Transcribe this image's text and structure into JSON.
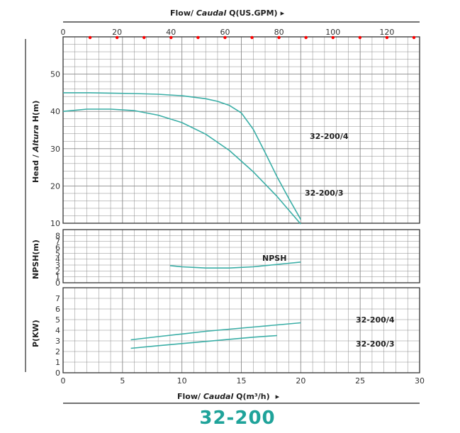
{
  "chart_data": [
    {
      "type": "line",
      "name": "head",
      "ylabel_prefix": "Head / ",
      "ylabel_italic": "Altura",
      "ylabel_suffix": " H(m)",
      "ylim": [
        10,
        60
      ],
      "yticks": [
        10,
        20,
        30,
        40,
        50
      ],
      "series": [
        {
          "name": "32-200/4",
          "x": [
            0,
            2,
            4,
            6,
            8,
            10,
            12,
            13,
            14,
            15,
            16,
            17,
            18,
            19,
            20
          ],
          "y": [
            45.0,
            45.0,
            44.9,
            44.8,
            44.6,
            44.2,
            43.4,
            42.7,
            41.6,
            39.6,
            35.2,
            29.0,
            22.5,
            16.6,
            11.0
          ]
        },
        {
          "name": "32-200/3",
          "x": [
            0,
            2,
            4,
            6,
            8,
            10,
            12,
            14,
            16,
            18,
            20
          ],
          "y": [
            40.0,
            40.6,
            40.6,
            40.2,
            39.0,
            37.0,
            33.9,
            29.5,
            23.8,
            17.2,
            9.8
          ]
        }
      ]
    },
    {
      "type": "line",
      "name": "npsh",
      "ylabel": "NPSH(m)",
      "ylim": [
        0,
        9
      ],
      "yticks": [
        0,
        1,
        2,
        3,
        4,
        5,
        6,
        7,
        8
      ],
      "series": [
        {
          "name": "NPSH",
          "x": [
            9,
            10,
            11,
            12,
            13,
            14,
            15,
            16,
            17,
            18,
            19,
            20
          ],
          "y": [
            2.9,
            2.7,
            2.6,
            2.5,
            2.5,
            2.5,
            2.6,
            2.7,
            2.9,
            3.1,
            3.3,
            3.5
          ]
        }
      ]
    },
    {
      "type": "line",
      "name": "power",
      "ylabel": "P(KW)",
      "ylim": [
        0,
        8
      ],
      "yticks": [
        0,
        1,
        2,
        3,
        4,
        5,
        6,
        7
      ],
      "series": [
        {
          "name": "32-200/4",
          "x": [
            5.7,
            8,
            10,
            12,
            14,
            16,
            18,
            20
          ],
          "y": [
            3.1,
            3.4,
            3.65,
            3.9,
            4.1,
            4.3,
            4.5,
            4.7
          ]
        },
        {
          "name": "32-200/3",
          "x": [
            5.7,
            8,
            10,
            12,
            14,
            16,
            18
          ],
          "y": [
            2.3,
            2.55,
            2.75,
            2.95,
            3.15,
            3.35,
            3.5
          ]
        }
      ]
    }
  ],
  "x_axis": {
    "unit_label_prefix": "Flow/ ",
    "unit_label_italic": "Caudal",
    "unit_label_suffix": " Q(m³/h)",
    "arrow": "▸",
    "xlim": [
      0,
      30
    ],
    "ticks": [
      0,
      5,
      10,
      15,
      20,
      25,
      30
    ]
  },
  "top_axis": {
    "unit_label_prefix": "Flow/ ",
    "unit_label_italic": "Caudal",
    "unit_label_suffix": " Q(US.GPM)",
    "arrow": "▸",
    "xlim": [
      0,
      132.1
    ],
    "ticks": [
      0,
      20,
      40,
      60,
      80,
      100,
      120
    ],
    "marker_step": 10
  },
  "labels": {
    "head_top": "32-200/4",
    "head_bottom": "32-200/3",
    "npsh": "NPSH",
    "power_top": "32-200/4",
    "power_bottom": "32-200/3"
  },
  "model_title": "32-200",
  "colors": {
    "curve": "#3aaea6",
    "grid": "#8a8a8a",
    "frame": "#333333",
    "marker": "#ff0000",
    "title": "#1fa39a"
  }
}
